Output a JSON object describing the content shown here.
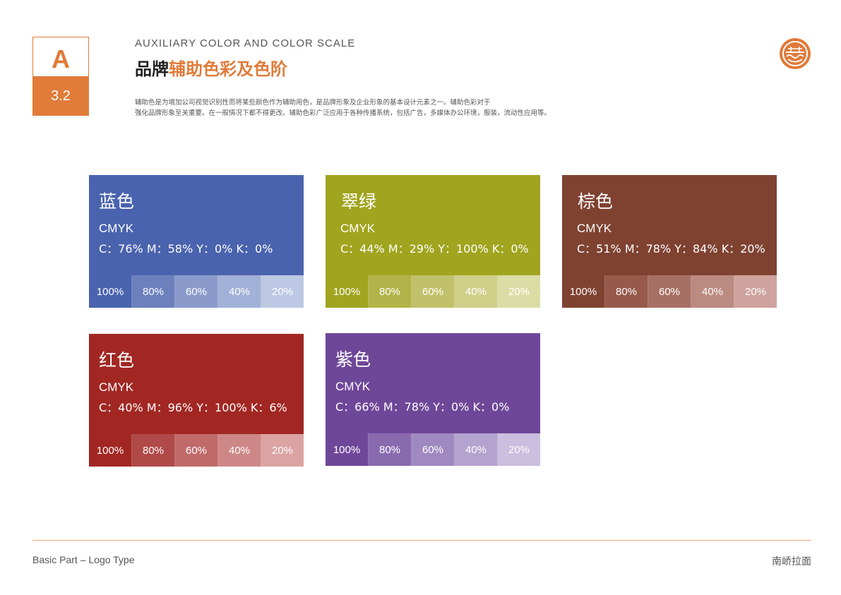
{
  "badge": {
    "letter": "A",
    "number": "3.2"
  },
  "header": {
    "subtitle": "AUXILIARY COLOR AND COLOR SCALE",
    "title_prefix": "品牌",
    "title_highlight": "辅助色彩及色阶",
    "description_line1": "辅助色是为增加公司视觉识别性而将某些颜色作为辅助用色，是品牌形象及企业形象的基本设计元素之一。辅助色彩对于",
    "description_line2": "强化品牌形象至关重要。在一般情况下都不得更改。辅助色彩广泛应用于各种传播系统，包括广告，多媒体办公环境，服装，流动性应用等。"
  },
  "colors": {
    "accent": "#e07b39"
  },
  "cards": [
    {
      "name": "蓝色",
      "cmyk_label": "CMYK",
      "cmyk_value": "C：76% M：58% Y：0% K：0%",
      "color": "#4a63ae",
      "scale": [
        {
          "label": "100%",
          "color": "#4a63ae"
        },
        {
          "label": "80%",
          "color": "#6c80bd"
        },
        {
          "label": "60%",
          "color": "#8a9bcb"
        },
        {
          "label": "40%",
          "color": "#a2b1d7"
        },
        {
          "label": "20%",
          "color": "#bdc9e4"
        }
      ]
    },
    {
      "name": "翠绿",
      "cmyk_label": "CMYK",
      "cmyk_value": "C：44% M：29% Y：100% K：0%",
      "color": "#a1a41e",
      "scale": [
        {
          "label": "100%",
          "color": "#a1a41e"
        },
        {
          "label": "80%",
          "color": "#b2b348"
        },
        {
          "label": "60%",
          "color": "#c0c16a"
        },
        {
          "label": "40%",
          "color": "#cfcf8a"
        },
        {
          "label": "20%",
          "color": "#dcdca6"
        }
      ]
    },
    {
      "name": "棕色",
      "cmyk_label": "CMYK",
      "cmyk_value": "C：51% M：78% Y：84% K：20%",
      "color": "#7f4231",
      "scale": [
        {
          "label": "100%",
          "color": "#7f4231"
        },
        {
          "label": "80%",
          "color": "#96594b"
        },
        {
          "label": "60%",
          "color": "#a86f64"
        },
        {
          "label": "40%",
          "color": "#bb8a81"
        },
        {
          "label": "20%",
          "color": "#cfa39d"
        }
      ]
    },
    {
      "name": "红色",
      "cmyk_label": "CMYK",
      "cmyk_value": "C：40% M：96% Y：100% K：6%",
      "color": "#a22723",
      "scale": [
        {
          "label": "100%",
          "color": "#a22723"
        },
        {
          "label": "80%",
          "color": "#b04a48"
        },
        {
          "label": "60%",
          "color": "#c06a69"
        },
        {
          "label": "40%",
          "color": "#cd8786"
        },
        {
          "label": "20%",
          "color": "#dba3a2"
        }
      ]
    },
    {
      "name": "紫色",
      "cmyk_label": "CMYK",
      "cmyk_value": "C：66% M：78% Y：0% K：0%",
      "color": "#6f4799",
      "scale": [
        {
          "label": "100%",
          "color": "#6f4799"
        },
        {
          "label": "80%",
          "color": "#8a6aaf"
        },
        {
          "label": "60%",
          "color": "#a089c0"
        },
        {
          "label": "40%",
          "color": "#b4a2cf"
        },
        {
          "label": "20%",
          "color": "#cbbedf"
        }
      ]
    }
  ],
  "footer": {
    "left": "Basic Part – Logo Type",
    "right": "南峤拉面"
  }
}
